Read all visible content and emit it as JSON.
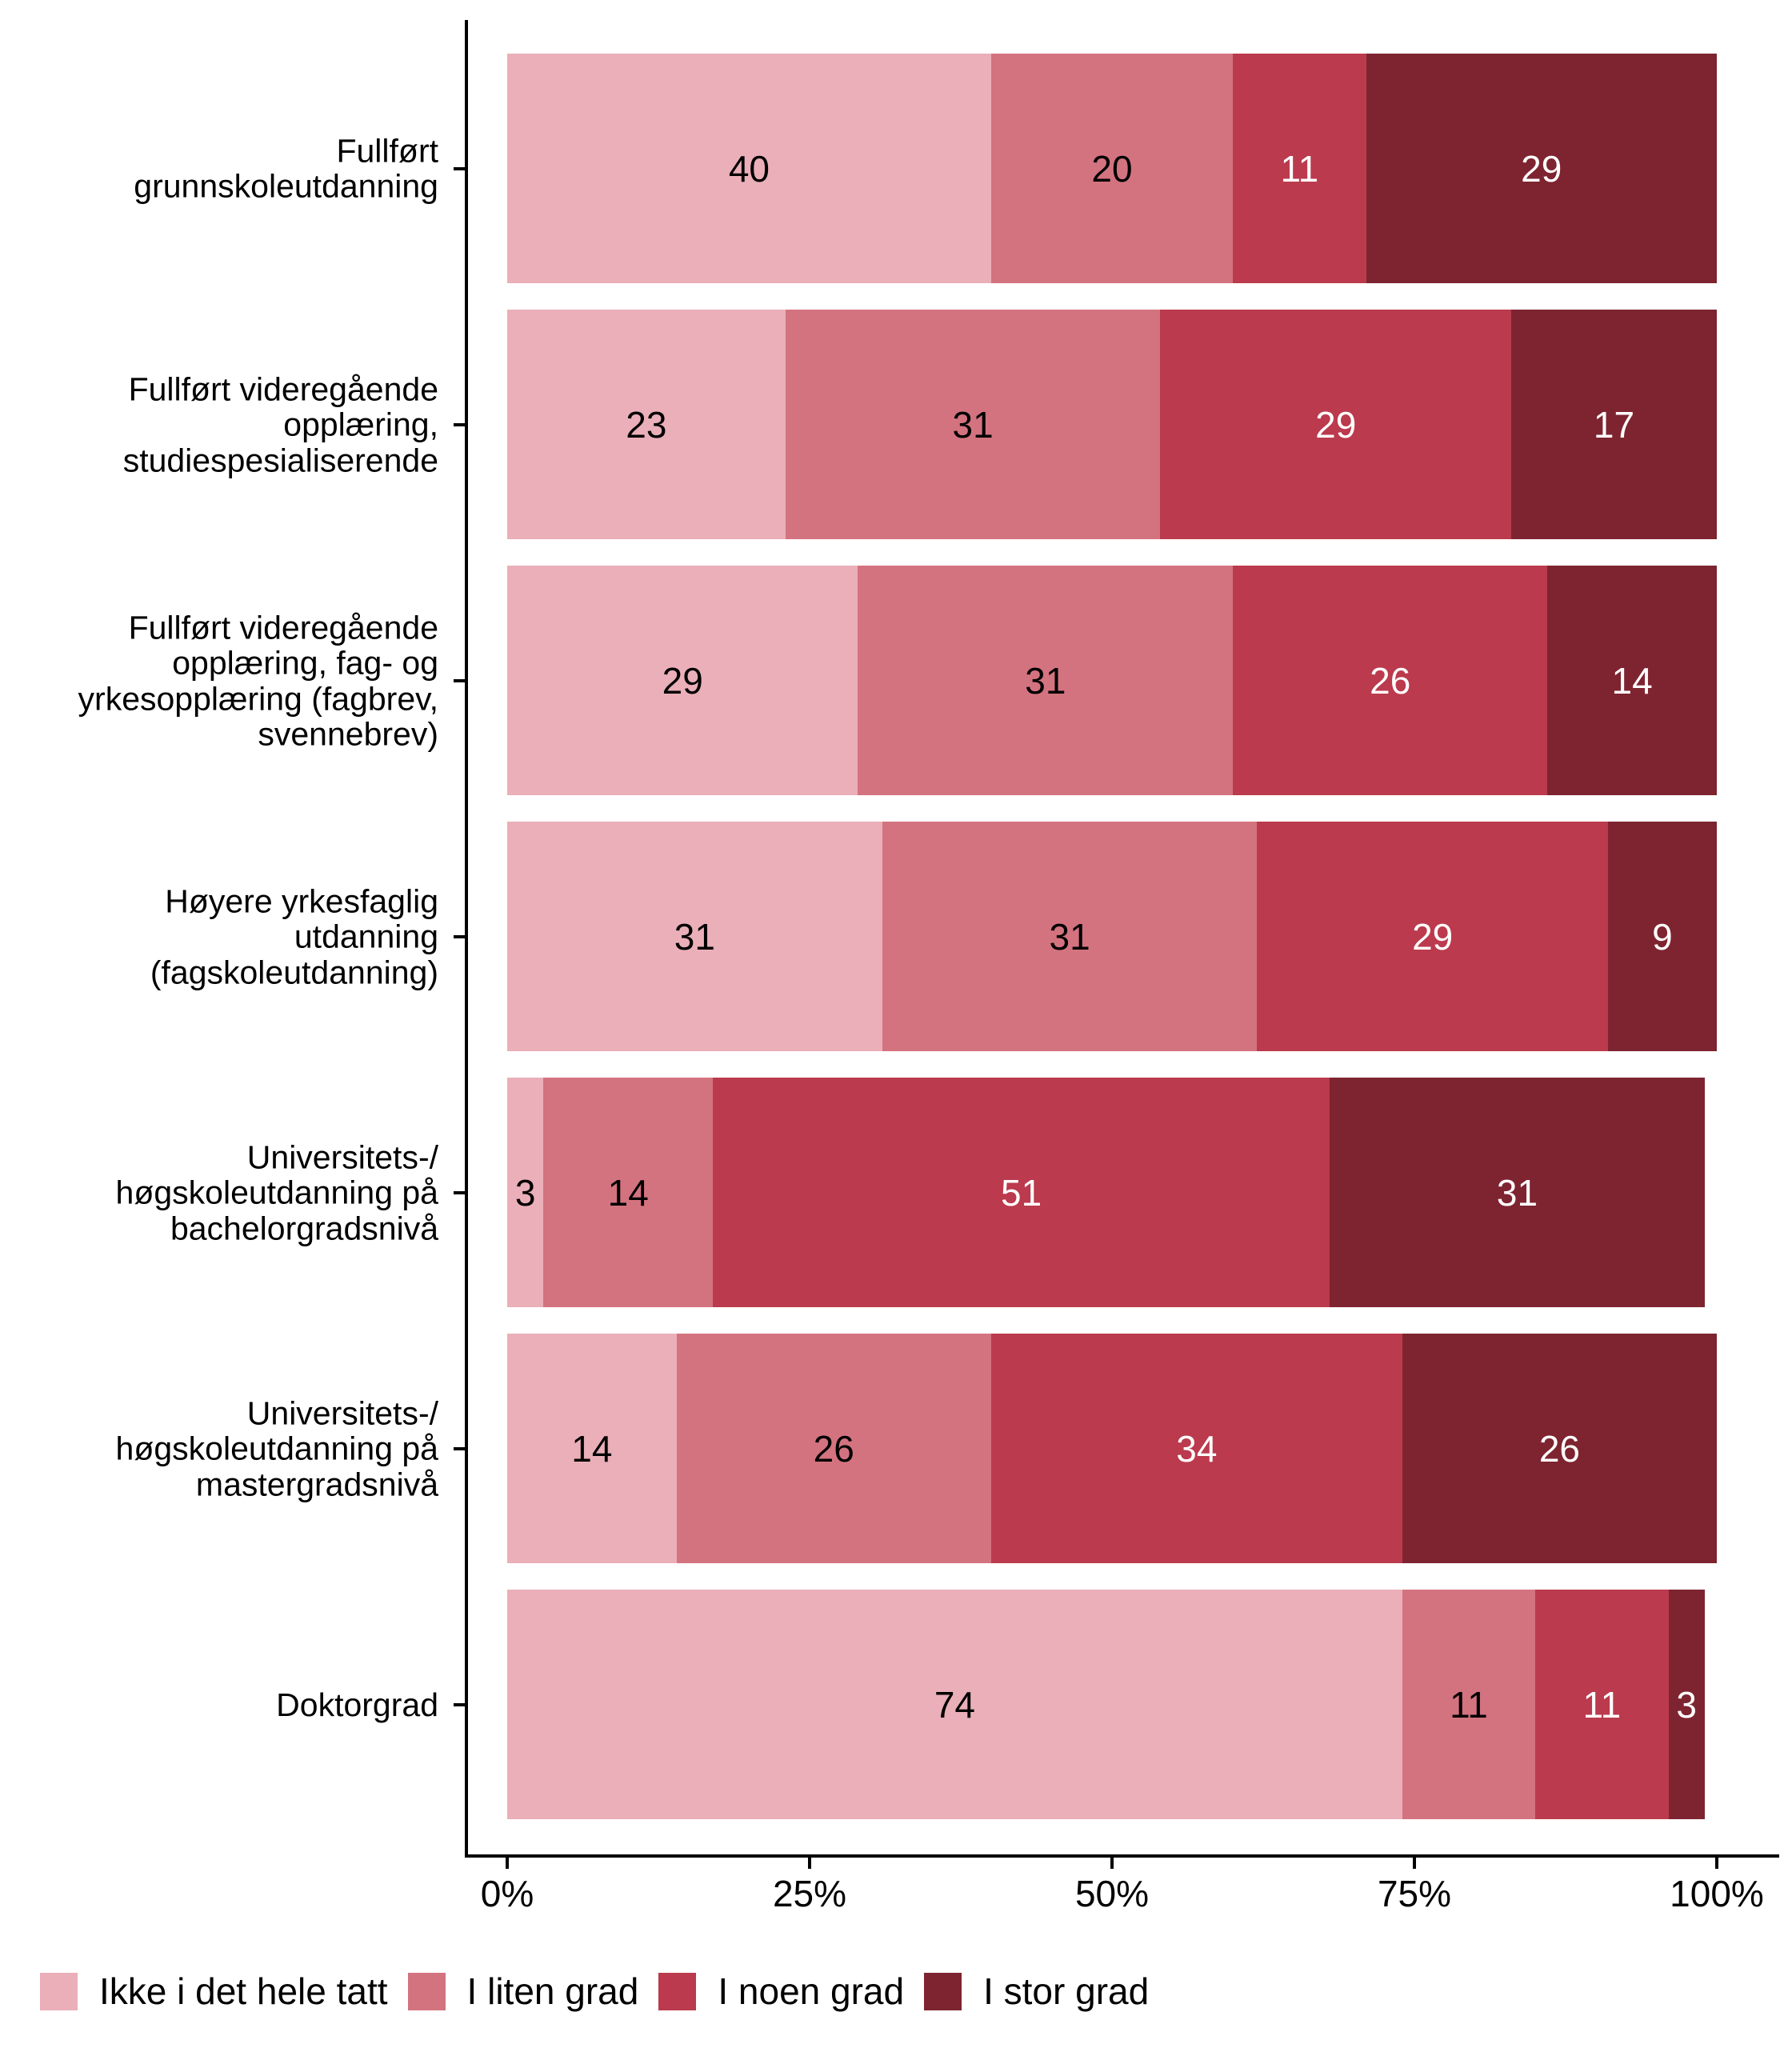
{
  "chart_data": {
    "type": "bar",
    "orientation": "horizontal",
    "stacked": true,
    "unit": "percent",
    "title": "",
    "xlabel": "",
    "ylabel": "",
    "xlim": [
      0,
      100
    ],
    "x_tick_labels": [
      "0%",
      "25%",
      "50%",
      "75%",
      "100%"
    ],
    "x_tick_values": [
      0,
      25,
      50,
      75,
      100
    ],
    "grid": false,
    "legend_position": "bottom-left",
    "categories": [
      "Fullført\ngrunnskoleutdanning",
      "Fullført videregående\nopplæring,\nstudiespesialiserende",
      "Fullført videregående\nopplæring, fag- og\nyrkesopplæring (fagbrev,\nsvennebrev)",
      "Høyere yrkesfaglig\nutdanning\n(fagskoleutdanning)",
      "Universitets-/\nhøgskoleutdanning på\nbachelorgradsnivå",
      "Universitets-/\nhøgskoleutdanning på\nmastergradsnivå",
      "Doktorgrad"
    ],
    "series": [
      {
        "name": "Ikke i det hele tatt",
        "color": "#eaafb8",
        "label_color": "#000000",
        "values": [
          40,
          23,
          29,
          31,
          3,
          14,
          74
        ]
      },
      {
        "name": "I liten grad",
        "color": "#d3737f",
        "label_color": "#000000",
        "values": [
          20,
          31,
          31,
          31,
          14,
          26,
          11
        ]
      },
      {
        "name": "I noen grad",
        "color": "#bb3a4d",
        "label_color": "#ffffff",
        "values": [
          11,
          29,
          26,
          29,
          51,
          34,
          11
        ]
      },
      {
        "name": "I stor grad",
        "color": "#7e2430",
        "label_color": "#ffffff",
        "values": [
          29,
          17,
          14,
          9,
          31,
          26,
          3
        ]
      }
    ],
    "axis_color": "#000000"
  }
}
